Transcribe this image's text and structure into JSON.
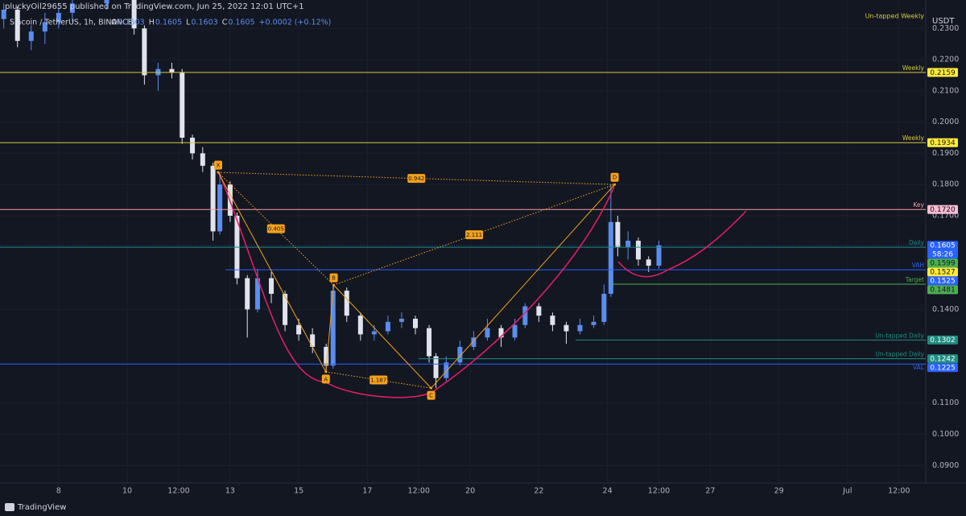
{
  "header": {
    "publisher": "pluckyOil29655 published on TradingView.com, Jun 25, 2022 12:01 UTC+1",
    "brand": "TradingView"
  },
  "chart_data": {
    "type": "candlestick",
    "title": "Siacoin / TetherUS, 1h, BINANCE",
    "ohlc_legend": [
      {
        "label": "O",
        "value": 0.1603
      },
      {
        "label": "H",
        "value": 0.1605
      },
      {
        "label": "L",
        "value": 0.1603
      },
      {
        "label": "C",
        "value": 0.1605
      }
    ],
    "change": "+0.0002 (+0.12%)",
    "currency": "USDT",
    "up_color": "#5b8def",
    "down_color": "#e0e3eb",
    "x": [
      6.4,
      6.8,
      7.2,
      7.6,
      8.0,
      8.4,
      9.4,
      10.2,
      10.5,
      10.9,
      11.3,
      11.6,
      11.9,
      12.2,
      12.5,
      12.7,
      13.0,
      13.2,
      13.5,
      13.8,
      14.2,
      14.6,
      15.0,
      15.4,
      15.8,
      16.0,
      16.4,
      16.8,
      17.2,
      17.6,
      18.0,
      18.4,
      18.8,
      19.0,
      19.3,
      19.7,
      20.1,
      20.5,
      20.9,
      21.3,
      21.6,
      22.0,
      22.4,
      22.8,
      23.2,
      23.6,
      23.9,
      24.1,
      24.3,
      24.6,
      24.9,
      25.2,
      25.5
    ],
    "open": [
      0.233,
      0.236,
      0.226,
      0.229,
      0.232,
      0.235,
      0.238,
      0.24,
      0.23,
      0.215,
      0.217,
      0.216,
      0.195,
      0.19,
      0.186,
      0.165,
      0.18,
      0.17,
      0.15,
      0.14,
      0.15,
      0.145,
      0.135,
      0.132,
      0.128,
      0.122,
      0.146,
      0.138,
      0.132,
      0.133,
      0.136,
      0.137,
      0.134,
      0.125,
      0.118,
      0.123,
      0.128,
      0.131,
      0.134,
      0.131,
      0.135,
      0.141,
      0.138,
      0.135,
      0.133,
      0.135,
      0.136,
      0.145,
      0.168,
      0.16,
      0.162,
      0.156,
      0.154
    ],
    "high": [
      0.238,
      0.237,
      0.231,
      0.235,
      0.237,
      0.24,
      0.242,
      0.241,
      0.231,
      0.219,
      0.219,
      0.217,
      0.196,
      0.192,
      0.187,
      0.184,
      0.181,
      0.171,
      0.151,
      0.153,
      0.152,
      0.146,
      0.137,
      0.134,
      0.129,
      0.1478,
      0.147,
      0.139,
      0.135,
      0.138,
      0.139,
      0.138,
      0.135,
      0.126,
      0.125,
      0.13,
      0.133,
      0.137,
      0.135,
      0.137,
      0.142,
      0.142,
      0.139,
      0.136,
      0.137,
      0.138,
      0.148,
      0.18,
      0.17,
      0.165,
      0.163,
      0.157,
      0.162
    ],
    "low": [
      0.23,
      0.224,
      0.223,
      0.225,
      0.23,
      0.232,
      0.236,
      0.228,
      0.212,
      0.21,
      0.214,
      0.193,
      0.188,
      0.184,
      0.162,
      0.164,
      0.168,
      0.148,
      0.131,
      0.139,
      0.142,
      0.133,
      0.13,
      0.126,
      0.12,
      0.121,
      0.136,
      0.13,
      0.13,
      0.132,
      0.134,
      0.132,
      0.123,
      0.1148,
      0.117,
      0.122,
      0.127,
      0.13,
      0.128,
      0.13,
      0.134,
      0.136,
      0.133,
      0.129,
      0.132,
      0.134,
      0.135,
      0.144,
      0.157,
      0.156,
      0.154,
      0.152,
      0.153
    ],
    "close": [
      0.236,
      0.226,
      0.229,
      0.232,
      0.235,
      0.238,
      0.24,
      0.23,
      0.215,
      0.217,
      0.216,
      0.195,
      0.19,
      0.186,
      0.165,
      0.18,
      0.17,
      0.15,
      0.14,
      0.15,
      0.145,
      0.135,
      0.132,
      0.128,
      0.122,
      0.146,
      0.138,
      0.132,
      0.133,
      0.136,
      0.137,
      0.134,
      0.125,
      0.118,
      0.123,
      0.128,
      0.131,
      0.134,
      0.131,
      0.135,
      0.141,
      0.138,
      0.135,
      0.133,
      0.135,
      0.136,
      0.145,
      0.168,
      0.16,
      0.162,
      0.156,
      0.154,
      0.1605
    ],
    "xlim": [
      6.29,
      33.28
    ],
    "ylim": [
      0.0844,
      0.2391
    ],
    "xticks": [
      {
        "value": 8,
        "label": "8"
      },
      {
        "value": 10,
        "label": "10"
      },
      {
        "value": 11.5,
        "label": "12:00"
      },
      {
        "value": 13,
        "label": "13"
      },
      {
        "value": 15,
        "label": "15"
      },
      {
        "value": 17,
        "label": "17"
      },
      {
        "value": 18.5,
        "label": "12:00"
      },
      {
        "value": 20,
        "label": "20"
      },
      {
        "value": 22,
        "label": "22"
      },
      {
        "value": 24,
        "label": "24"
      },
      {
        "value": 25.5,
        "label": "12:00"
      },
      {
        "value": 27,
        "label": "27"
      },
      {
        "value": 29,
        "label": "29"
      },
      {
        "value": 31,
        "label": "Jul"
      },
      {
        "value": 32.5,
        "label": "12:00"
      }
    ],
    "yticks": [
      {
        "value": 0.23,
        "label": "0.2300"
      },
      {
        "value": 0.22,
        "label": "0.2200"
      },
      {
        "value": 0.21,
        "label": "0.2100"
      },
      {
        "value": 0.2,
        "label": "0.2000"
      },
      {
        "value": 0.19,
        "label": "0.1900"
      },
      {
        "value": 0.18,
        "label": "0.1800"
      },
      {
        "value": 0.17,
        "label": "0.1700"
      },
      {
        "value": 0.14,
        "label": "0.1400"
      },
      {
        "value": 0.11,
        "label": "0.1100"
      },
      {
        "value": 0.1,
        "label": "0.1000"
      },
      {
        "value": 0.09,
        "label": "0.0900"
      }
    ],
    "grid": true,
    "annotations": [
      "Un-tapped Weekly"
    ],
    "current_price": {
      "value": 0.1605,
      "label": "0.1605",
      "countdown": "58:26",
      "color": "#2962ff"
    },
    "levels": [
      {
        "name": "Weekly",
        "value": 0.2159,
        "label": "0.2159",
        "color": "#d8c93a",
        "box": "#ffeb3b"
      },
      {
        "name": "Weekly",
        "value": 0.1934,
        "label": "0.1934",
        "color": "#d8c93a",
        "box": "#ffeb3b"
      },
      {
        "name": "Key",
        "value": 0.172,
        "label": "0.1720",
        "color": "#f49aa6",
        "box": "#f8bbd0"
      },
      {
        "name": "Daily",
        "value": 0.1599,
        "label": "0.1599",
        "color": "#1f8c80",
        "box": "#4caf50"
      },
      {
        "name": "VAH",
        "value": 0.1527,
        "label": "0.1527",
        "color": "#2962ff",
        "box": "#ffeb3b"
      },
      {
        "value": 0.1525,
        "label": "0.1525",
        "color": "#2962ff",
        "box": "#2962ff"
      },
      {
        "name": "Target",
        "value": 0.1481,
        "label": "0.1481",
        "color": "#4caf50",
        "box": "#4caf50"
      },
      {
        "name": "Un-tapped Daily",
        "value": 0.1302,
        "label": "0.1302",
        "color": "#1f8c80",
        "box": "#1f8c80"
      },
      {
        "name": "Un-tapped Daily",
        "value": 0.1242,
        "label": "0.1242",
        "color": "#1f8c80",
        "box": "#1f8c80"
      },
      {
        "name": "VAL",
        "value": 0.1225,
        "label": "0.1225",
        "color": "#2962ff",
        "box": "#2962ff"
      }
    ],
    "pattern": {
      "color": "#f7a21b",
      "points": [
        {
          "label": "X",
          "x": 12.65,
          "y": 0.1839
        },
        {
          "label": "A",
          "x": 15.79,
          "y": 0.12
        },
        {
          "label": "B",
          "x": 16.02,
          "y": 0.1478
        },
        {
          "label": "C",
          "x": 18.86,
          "y": 0.1148
        },
        {
          "label": "D",
          "x": 24.21,
          "y": 0.18
        }
      ],
      "ratios": [
        {
          "from": 0,
          "to": 2,
          "label": "0.405"
        },
        {
          "from": 0,
          "to": 4,
          "label": "0.942"
        },
        {
          "from": 1,
          "to": 3,
          "label": "1.187"
        },
        {
          "from": 2,
          "to": 4,
          "label": "2.111"
        }
      ]
    }
  }
}
